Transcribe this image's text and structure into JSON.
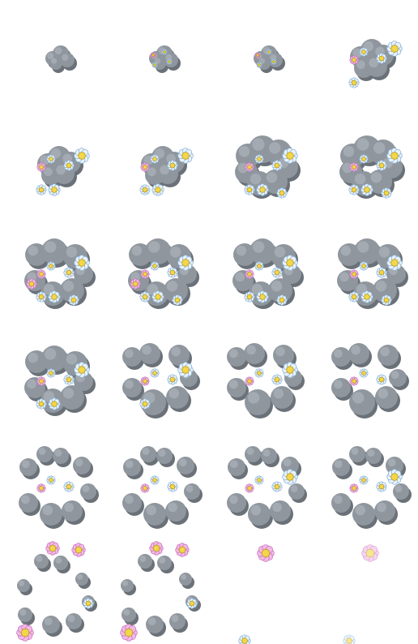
{
  "sprite_sheet": {
    "columns": 4,
    "rows": 6,
    "colors": {
      "background": "#ffffff",
      "cloud_fill": "#8f969e",
      "cloud_shadow": "#6b7178",
      "cloud_highlight": "#b7bcc1",
      "flower_petal_white": "#e8f2fb",
      "flower_petal_blue_outline": "#8fb6d8",
      "flower_petal_pink": "#f4b8e6",
      "flower_petal_pink_outline": "#c97bbf",
      "flower_center": "#f3d64a",
      "flower_center_outline": "#b99a1c"
    },
    "frames": [
      {
        "index": 1,
        "cloud": "small-puff",
        "flowers": 0,
        "opacity": 1.0
      },
      {
        "index": 2,
        "cloud": "small-puff",
        "flowers": 4,
        "opacity": 1.0
      },
      {
        "index": 3,
        "cloud": "small-puff",
        "flowers": 4,
        "opacity": 1.0
      },
      {
        "index": 4,
        "cloud": "medium-puff",
        "flowers": 5,
        "opacity": 1.0
      },
      {
        "index": 5,
        "cloud": "medium-puff",
        "flowers": 6,
        "opacity": 1.0
      },
      {
        "index": 6,
        "cloud": "medium-puff",
        "flowers": 6,
        "opacity": 1.0
      },
      {
        "index": 7,
        "cloud": "ring-closed",
        "flowers": 7,
        "opacity": 1.0
      },
      {
        "index": 8,
        "cloud": "ring-closed",
        "flowers": 7,
        "opacity": 1.0
      },
      {
        "index": 9,
        "cloud": "ring",
        "flowers": 8,
        "opacity": 1.0
      },
      {
        "index": 10,
        "cloud": "ring",
        "flowers": 8,
        "opacity": 1.0
      },
      {
        "index": 11,
        "cloud": "ring",
        "flowers": 7,
        "opacity": 1.0
      },
      {
        "index": 12,
        "cloud": "ring",
        "flowers": 7,
        "opacity": 1.0
      },
      {
        "index": 13,
        "cloud": "ring",
        "flowers": 6,
        "opacity": 1.0
      },
      {
        "index": 14,
        "cloud": "ring-open",
        "flowers": 5,
        "opacity": 1.0
      },
      {
        "index": 15,
        "cloud": "ring-open",
        "flowers": 4,
        "opacity": 1.0
      },
      {
        "index": 16,
        "cloud": "ring-open",
        "flowers": 3,
        "opacity": 1.0
      },
      {
        "index": 17,
        "cloud": "ring-wide",
        "flowers": 3,
        "opacity": 1.0
      },
      {
        "index": 18,
        "cloud": "ring-wide",
        "flowers": 3,
        "opacity": 1.0
      },
      {
        "index": 19,
        "cloud": "ring-wide",
        "flowers": 4,
        "opacity": 1.0
      },
      {
        "index": 20,
        "cloud": "ring-wide",
        "flowers": 4,
        "opacity": 1.0
      },
      {
        "index": 21,
        "cloud": "ring-sparse",
        "flowers": 4,
        "opacity": 1.0
      },
      {
        "index": 22,
        "cloud": "ring-sparse",
        "flowers": 4,
        "opacity": 1.0
      },
      {
        "index": 23,
        "cloud": "none",
        "flowers": 2,
        "opacity": 1.0
      },
      {
        "index": 24,
        "cloud": "none",
        "flowers": 2,
        "opacity": 0.6
      }
    ]
  }
}
